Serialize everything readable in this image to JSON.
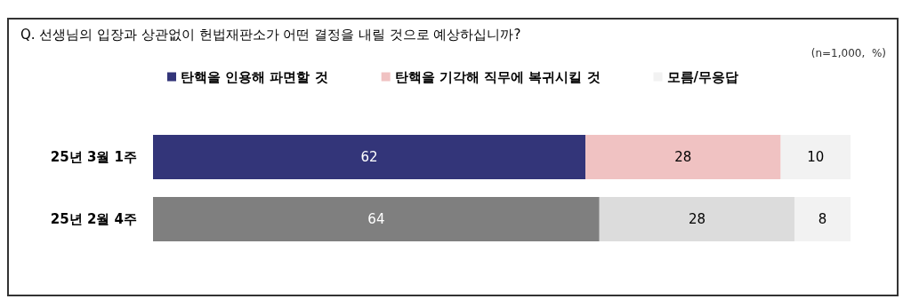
{
  "chart_data": {
    "type": "bar",
    "orientation": "horizontal",
    "stacked": true,
    "title": "Q. 선생님의 입장과 상관없이 헌법재판소가 어떤 결정을 내릴 것으로 예상하십니까?",
    "annotations": [
      "(n=1,000,  %)"
    ],
    "categories": [
      "25년 3월 1주",
      "25년 2월 4주"
    ],
    "series": [
      {
        "name": "탄핵을 인용해 파면할 것",
        "color": "#333579",
        "colors": [
          "#333579",
          "#7f7f7f"
        ],
        "values": [
          62,
          64
        ]
      },
      {
        "name": "탄핵을 기각해 직무에 복귀시킬 것",
        "color": "#f0c2c2",
        "colors": [
          "#f0c2c2",
          "#dcdcdc"
        ],
        "values": [
          28,
          28
        ]
      },
      {
        "name": "모름/무응답",
        "color": "#f2f2f2",
        "colors": [
          "#f2f2f2",
          "#f2f2f2"
        ],
        "values": [
          10,
          8
        ]
      }
    ],
    "xlim": [
      0,
      100
    ],
    "tick_labels": "y",
    "data_labels": true,
    "legend": "top",
    "grid": false
  }
}
